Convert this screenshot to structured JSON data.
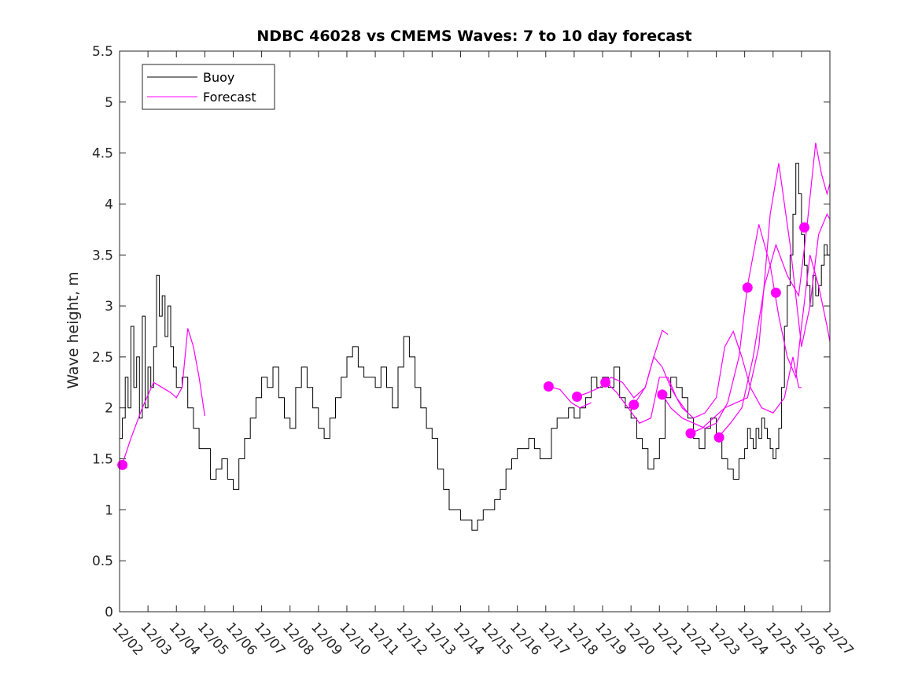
{
  "chart_data": {
    "type": "line",
    "title": "NDBC 46028 vs CMEMS Waves: 7 to 10 day forecast",
    "xlabel": "",
    "ylabel": "Wave height, m",
    "xlim": [
      0,
      25
    ],
    "ylim": [
      0,
      5.5
    ],
    "yticks": [
      0,
      0.5,
      1,
      1.5,
      2,
      2.5,
      3,
      3.5,
      4,
      4.5,
      5,
      5.5
    ],
    "ytick_labels": [
      "0",
      "0.5",
      "1",
      "1.5",
      "2",
      "2.5",
      "3",
      "3.5",
      "4",
      "4.5",
      "5",
      "5.5"
    ],
    "xtick_labels": [
      "12/02",
      "12/03",
      "12/04",
      "12/05",
      "12/06",
      "12/07",
      "12/08",
      "12/09",
      "12/10",
      "12/11",
      "12/12",
      "12/13",
      "12/14",
      "12/15",
      "12/16",
      "12/17",
      "12/18",
      "12/19",
      "12/20",
      "12/21",
      "12/22",
      "12/23",
      "12/24",
      "12/25",
      "12/26",
      "12/27"
    ],
    "legend": {
      "position": "top-left",
      "entries": [
        "Buoy",
        "Forecast"
      ]
    },
    "colors": {
      "buoy": "#000000",
      "forecast": "#ff00ff",
      "axes": "#262626"
    },
    "series": [
      {
        "name": "Buoy",
        "x": [
          0,
          0.1,
          0.2,
          0.3,
          0.4,
          0.5,
          0.6,
          0.7,
          0.8,
          0.9,
          1.0,
          1.1,
          1.2,
          1.3,
          1.4,
          1.5,
          1.6,
          1.7,
          1.8,
          1.9,
          2.0,
          2.2,
          2.4,
          2.6,
          2.8,
          3.0,
          3.2,
          3.4,
          3.6,
          3.8,
          4.0,
          4.2,
          4.4,
          4.6,
          4.8,
          5.0,
          5.2,
          5.4,
          5.6,
          5.8,
          6.0,
          6.2,
          6.4,
          6.6,
          6.8,
          7.0,
          7.2,
          7.4,
          7.6,
          7.8,
          8.0,
          8.2,
          8.4,
          8.6,
          8.8,
          9.0,
          9.2,
          9.4,
          9.6,
          9.8,
          10.0,
          10.2,
          10.4,
          10.6,
          10.8,
          11.0,
          11.2,
          11.4,
          11.6,
          11.8,
          12.0,
          12.2,
          12.4,
          12.6,
          12.8,
          13.0,
          13.2,
          13.4,
          13.6,
          13.8,
          14.0,
          14.2,
          14.4,
          14.6,
          14.8,
          15.0,
          15.2,
          15.4,
          15.6,
          15.8,
          16.0,
          16.2,
          16.4,
          16.6,
          16.8,
          17.0,
          17.2,
          17.4,
          17.6,
          17.8,
          18.0,
          18.2,
          18.4,
          18.6,
          18.8,
          19.0,
          19.2,
          19.4,
          19.6,
          19.8,
          20.0,
          20.2,
          20.4,
          20.6,
          20.8,
          21.0,
          21.2,
          21.4,
          21.6,
          21.8,
          22.0,
          22.1,
          22.2,
          22.3,
          22.4,
          22.5,
          22.6,
          22.7,
          22.8,
          22.9,
          23.0,
          23.1,
          23.2,
          23.3,
          23.4,
          23.5,
          23.6,
          23.7,
          23.8,
          23.9,
          24.0,
          24.1,
          24.2,
          24.3,
          24.4,
          24.5,
          24.6,
          24.7,
          24.8,
          24.9,
          25.0
        ],
        "y": [
          1.7,
          1.9,
          2.3,
          2.0,
          2.8,
          2.2,
          2.5,
          1.9,
          2.9,
          2.0,
          2.4,
          2.2,
          2.6,
          3.3,
          2.9,
          3.1,
          2.7,
          3.0,
          2.6,
          2.4,
          2.2,
          2.3,
          2.0,
          1.8,
          1.6,
          1.6,
          1.3,
          1.4,
          1.5,
          1.3,
          1.2,
          1.5,
          1.7,
          1.9,
          2.1,
          2.3,
          2.2,
          2.4,
          2.1,
          1.9,
          1.8,
          2.2,
          2.4,
          2.2,
          2.0,
          1.8,
          1.7,
          1.9,
          2.1,
          2.3,
          2.5,
          2.6,
          2.4,
          2.3,
          2.3,
          2.2,
          2.4,
          2.2,
          2.0,
          2.4,
          2.7,
          2.5,
          2.2,
          2.0,
          1.8,
          1.7,
          1.4,
          1.2,
          1.0,
          1.0,
          0.9,
          0.9,
          0.8,
          0.9,
          1.0,
          1.0,
          1.1,
          1.2,
          1.4,
          1.5,
          1.6,
          1.6,
          1.7,
          1.6,
          1.5,
          1.5,
          1.8,
          1.9,
          1.9,
          2.0,
          1.9,
          2.0,
          2.1,
          2.3,
          2.2,
          2.3,
          2.2,
          2.4,
          2.1,
          2.0,
          1.9,
          1.7,
          1.6,
          1.4,
          1.5,
          1.7,
          2.1,
          2.3,
          2.2,
          2.1,
          1.9,
          1.7,
          1.6,
          1.8,
          1.9,
          1.7,
          1.5,
          1.4,
          1.3,
          1.5,
          1.6,
          1.8,
          1.7,
          1.6,
          1.8,
          1.7,
          1.9,
          1.8,
          1.7,
          1.6,
          1.5,
          1.6,
          1.8,
          2.2,
          2.8,
          3.2,
          3.5,
          3.9,
          4.4,
          4.1,
          3.7,
          3.4,
          3.2,
          3.0,
          3.3,
          3.1,
          3.2,
          3.4,
          3.6,
          3.5,
          3.8
        ]
      },
      {
        "name": "Forecast",
        "segments": [
          {
            "x": [
              0.1,
              0.4,
              0.8,
              1.2,
              1.5,
              1.8,
              2.0,
              2.2,
              2.4,
              2.6,
              2.8,
              3.0
            ],
            "y": [
              1.45,
              1.7,
              2.0,
              2.25,
              2.2,
              2.15,
              2.1,
              2.2,
              2.78,
              2.6,
              2.3,
              1.92
            ]
          },
          {
            "x": [
              15.1,
              15.5,
              15.9,
              16.2,
              16.6
            ],
            "y": [
              2.21,
              2.18,
              2.05,
              2.0,
              2.05
            ]
          },
          {
            "x": [
              16.1,
              16.5,
              16.9,
              17.3,
              17.7,
              18.1,
              18.5,
              18.8,
              19.1,
              19.3
            ],
            "y": [
              2.11,
              2.15,
              2.2,
              2.3,
              2.25,
              2.1,
              2.2,
              2.5,
              2.76,
              2.72
            ]
          },
          {
            "x": [
              17.1,
              17.5,
              17.9,
              18.3,
              18.7,
              19.0,
              19.3,
              19.6,
              20.0
            ],
            "y": [
              2.26,
              2.15,
              2.0,
              1.85,
              1.9,
              2.3,
              2.3,
              2.1,
              1.95
            ]
          },
          {
            "x": [
              18.1,
              18.5,
              18.8,
              19.1,
              19.4,
              19.8,
              20.2,
              20.6,
              21.0,
              21.3,
              21.6,
              21.9,
              22.2,
              22.6,
              23.0,
              23.4,
              23.7,
              23.9,
              24.0
            ],
            "y": [
              2.03,
              2.2,
              2.5,
              2.4,
              2.2,
              2.0,
              1.9,
              1.95,
              2.1,
              2.6,
              2.75,
              2.5,
              2.2,
              2.0,
              1.95,
              2.1,
              2.5,
              2.2,
              2.2
            ]
          },
          {
            "x": [
              19.1,
              19.4,
              19.8,
              20.2,
              20.6,
              21.0,
              21.4,
              21.8,
              22.1,
              22.5,
              22.9,
              23.2,
              23.5,
              23.8,
              24.0,
              24.3,
              24.6,
              24.9,
              25.0
            ],
            "y": [
              2.13,
              2.0,
              1.9,
              1.85,
              1.8,
              1.85,
              2.05,
              2.5,
              3.2,
              3.8,
              3.4,
              2.9,
              2.5,
              2.3,
              2.8,
              3.5,
              3.2,
              2.8,
              2.65
            ]
          },
          {
            "x": [
              20.1,
              20.5,
              20.9,
              21.3,
              21.7,
              22.1,
              22.5,
              22.9,
              23.2,
              23.6,
              24.0,
              24.3,
              24.6,
              24.9,
              25.0
            ],
            "y": [
              1.75,
              1.8,
              1.9,
              2.0,
              2.05,
              2.1,
              2.6,
              3.9,
              4.4,
              3.6,
              2.6,
              3.0,
              3.7,
              3.9,
              3.85
            ]
          },
          {
            "x": [
              21.1,
              21.5,
              21.9,
              22.3,
              22.7,
              23.1,
              23.5,
              23.9,
              24.2,
              24.5,
              24.7,
              24.9,
              25.0
            ],
            "y": [
              1.72,
              1.85,
              2.0,
              2.5,
              3.2,
              3.6,
              3.3,
              3.1,
              3.8,
              4.6,
              4.3,
              4.1,
              4.2
            ]
          }
        ],
        "markers": {
          "x": [
            0.1,
            15.1,
            16.1,
            17.1,
            18.1,
            19.1,
            20.1,
            21.1,
            22.1,
            23.1,
            24.1
          ],
          "y": [
            1.44,
            2.21,
            2.11,
            2.25,
            2.03,
            2.13,
            1.75,
            1.71,
            3.18,
            3.13,
            3.77
          ]
        }
      }
    ]
  }
}
